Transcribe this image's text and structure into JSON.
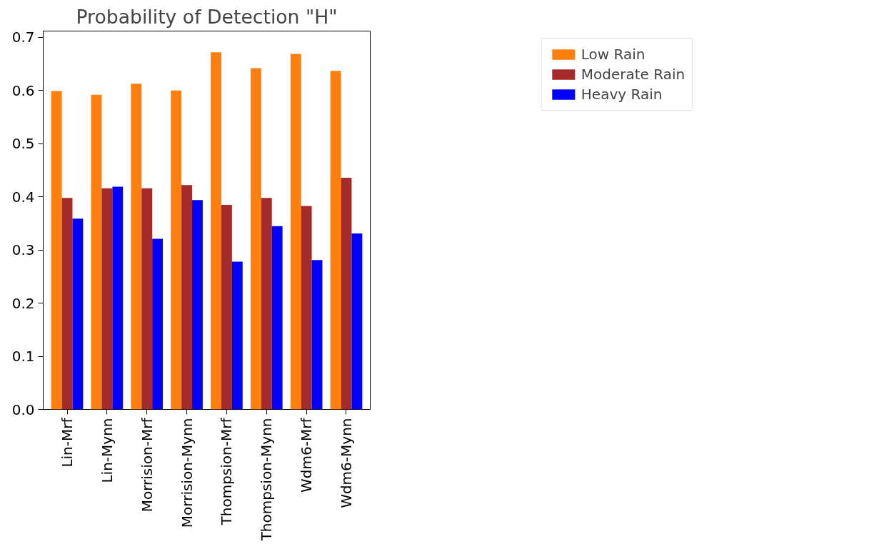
{
  "chart_data": {
    "type": "bar",
    "title": "Probability of Detection \"H\"",
    "categories": [
      "Lin-Mrf",
      "Lin-Mynn",
      "Morrision-Mrf",
      "Morrision-Mynn",
      "Thompsion-Mrf",
      "Thompsion-Mynn",
      "Wdm6-Mrf",
      "Wdm6-Mynn"
    ],
    "series": [
      {
        "name": "Low Rain",
        "color": "#ff7f0e",
        "values": [
          0.599,
          0.592,
          0.613,
          0.6,
          0.672,
          0.642,
          0.669,
          0.637
        ]
      },
      {
        "name": "Moderate Rain",
        "color": "#a52a2a",
        "values": [
          0.398,
          0.416,
          0.416,
          0.422,
          0.385,
          0.398,
          0.383,
          0.436
        ]
      },
      {
        "name": "Heavy Rain",
        "color": "#0000ff",
        "values": [
          0.359,
          0.419,
          0.321,
          0.394,
          0.278,
          0.345,
          0.281,
          0.331
        ]
      }
    ],
    "ylim": [
      0,
      0.712
    ],
    "yticks": [
      {
        "value": 0,
        "label": "0.0"
      },
      0.1,
      0.2,
      0.3,
      0.4,
      0.5,
      0.6,
      0.7
    ],
    "grid": false,
    "legend": "top right"
  }
}
